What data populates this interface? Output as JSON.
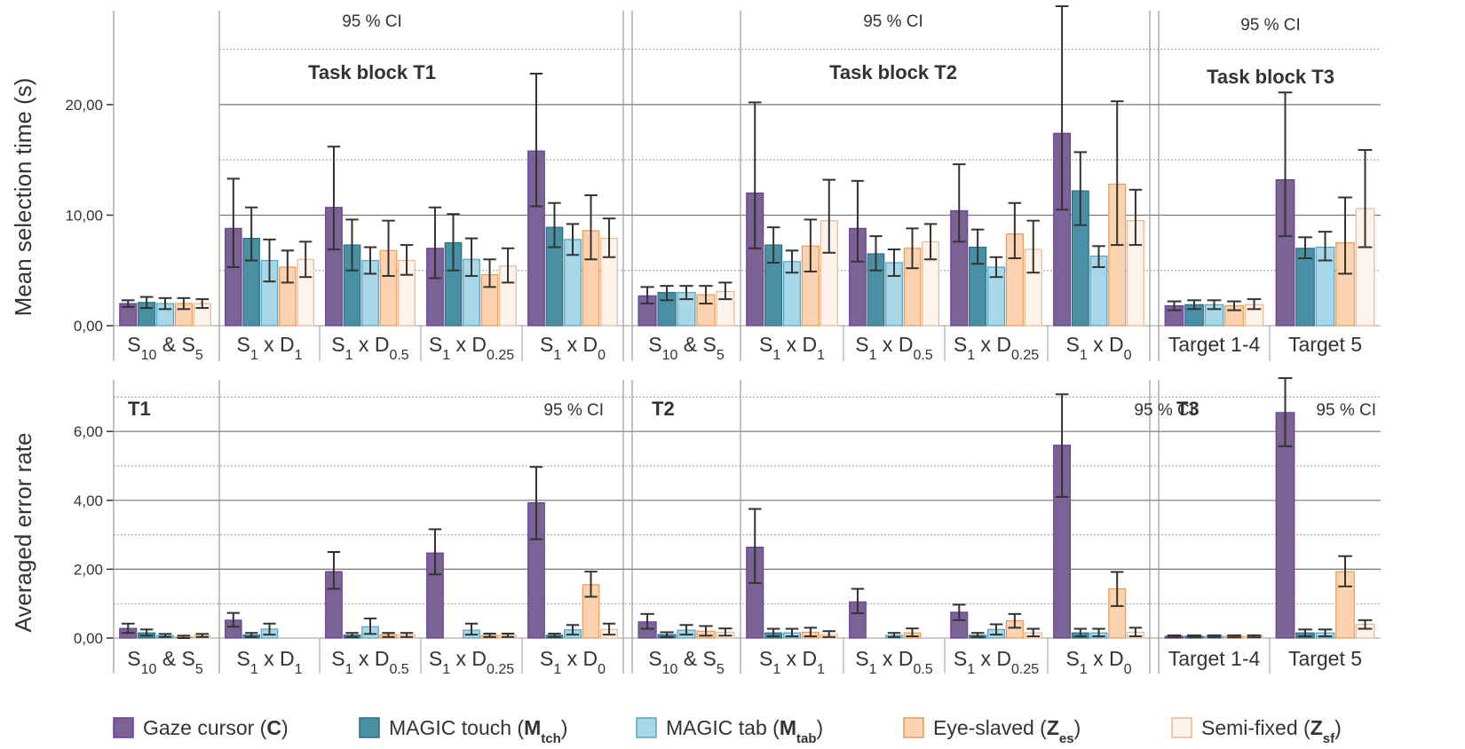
{
  "chart_data": [
    {
      "type": "bar",
      "panel": "selection-time",
      "ylabel": "Mean selection time (s)",
      "yticks": [
        "0,00",
        "10,00",
        "20,00"
      ],
      "ylim": [
        0,
        28.5
      ],
      "gridlines_solid": [
        10,
        20
      ],
      "gridlines_dashed": [
        5,
        15,
        25
      ],
      "series_names": [
        "Gaze cursor (C)",
        "MAGIC touch (Mtch)",
        "MAGIC tab (Mtab)",
        "Eye-slaved (Zes)",
        "Semi-fixed (Zsf)"
      ],
      "blocks": [
        {
          "title": "Task block T1",
          "ci_label": "95 % CI",
          "groups": [
            {
              "label": "S10 & S5",
              "values": [
                2.0,
                2.1,
                2.0,
                2.0,
                2.0
              ],
              "err_low": [
                1.7,
                1.6,
                1.5,
                1.5,
                1.6
              ],
              "err_high": [
                2.3,
                2.6,
                2.5,
                2.5,
                2.4
              ]
            },
            {
              "label": "S1 x D1",
              "values": [
                8.8,
                7.9,
                5.9,
                5.3,
                6.0
              ],
              "err_low": [
                5.3,
                5.9,
                4.0,
                3.9,
                4.4
              ],
              "err_high": [
                13.3,
                10.7,
                7.8,
                6.8,
                7.6
              ]
            },
            {
              "label": "S1 x D0.5",
              "values": [
                10.7,
                7.3,
                5.9,
                6.8,
                5.9
              ],
              "err_low": [
                6.9,
                5.0,
                4.7,
                4.5,
                4.6
              ],
              "err_high": [
                16.2,
                9.6,
                7.1,
                9.5,
                7.3
              ]
            },
            {
              "label": "S1 x D0.25",
              "values": [
                7.0,
                7.5,
                6.0,
                4.6,
                5.4
              ],
              "err_low": [
                4.3,
                5.0,
                4.5,
                3.5,
                3.9
              ],
              "err_high": [
                10.7,
                10.1,
                7.9,
                6.0,
                7.0
              ]
            },
            {
              "label": "S1 x D0",
              "values": [
                15.8,
                8.9,
                7.8,
                8.6,
                7.9
              ],
              "err_low": [
                10.8,
                7.1,
                6.4,
                6.0,
                6.2
              ],
              "err_high": [
                22.8,
                11.1,
                9.2,
                11.8,
                9.7
              ]
            }
          ]
        },
        {
          "title": "Task block T2",
          "ci_label": "95 % CI",
          "groups": [
            {
              "label": "S10 & S5",
              "values": [
                2.7,
                3.0,
                3.0,
                2.8,
                3.1
              ],
              "err_low": [
                2.0,
                2.3,
                2.4,
                2.0,
                2.4
              ],
              "err_high": [
                3.5,
                3.6,
                3.6,
                3.6,
                3.9
              ]
            },
            {
              "label": "S1 x D1",
              "values": [
                12.0,
                7.3,
                5.8,
                7.2,
                9.5
              ],
              "err_low": [
                7.0,
                5.7,
                4.8,
                4.9,
                6.6
              ],
              "err_high": [
                20.2,
                8.9,
                6.8,
                9.6,
                13.2
              ]
            },
            {
              "label": "S1 x D0.5",
              "values": [
                8.8,
                6.5,
                5.7,
                7.0,
                7.6
              ],
              "err_low": [
                5.8,
                5.0,
                4.5,
                5.2,
                6.0
              ],
              "err_high": [
                13.1,
                8.1,
                6.9,
                8.8,
                9.2
              ]
            },
            {
              "label": "S1 x D0.25",
              "values": [
                10.4,
                7.1,
                5.3,
                8.3,
                6.9
              ],
              "err_low": [
                7.6,
                5.6,
                4.4,
                6.1,
                4.8
              ],
              "err_high": [
                14.6,
                8.7,
                6.2,
                11.1,
                9.5
              ]
            },
            {
              "label": "S1 x D0",
              "values": [
                17.4,
                12.2,
                6.3,
                12.8,
                9.5
              ],
              "err_low": [
                10.5,
                9.1,
                5.3,
                7.3,
                7.3
              ],
              "err_high": [
                28.9,
                15.7,
                7.2,
                20.3,
                12.3
              ]
            }
          ]
        },
        {
          "title": "Task block T3",
          "ci_label": "95 % CI",
          "groups": [
            {
              "label": "Target 1-4",
              "values": [
                1.8,
                1.9,
                1.9,
                1.8,
                1.9
              ],
              "err_low": [
                1.4,
                1.5,
                1.5,
                1.4,
                1.5
              ],
              "err_high": [
                2.2,
                2.3,
                2.3,
                2.2,
                2.4
              ]
            },
            {
              "label": "Target 5",
              "values": [
                13.2,
                7.0,
                7.1,
                7.5,
                10.6
              ],
              "err_low": [
                8.1,
                6.1,
                5.9,
                4.7,
                7.1
              ],
              "err_high": [
                21.1,
                8.0,
                8.5,
                11.6,
                15.9
              ]
            }
          ]
        }
      ]
    },
    {
      "type": "bar",
      "panel": "error-rate",
      "ylabel": "Averaged error rate",
      "yticks": [
        "0,00",
        "2,00",
        "4,00",
        "6,00"
      ],
      "ylim": [
        0,
        7.5
      ],
      "gridlines_solid": [
        2,
        4,
        6
      ],
      "gridlines_dashed": [
        1,
        3,
        5,
        7
      ],
      "series_names": [
        "Gaze cursor (C)",
        "MAGIC touch (Mtch)",
        "MAGIC tab (Mtab)",
        "Eye-slaved (Zes)",
        "Semi-fixed (Zsf)"
      ],
      "blocks": [
        {
          "tag": "T1",
          "ci_label": "95 % CI",
          "groups": [
            {
              "label": "S10 & S5",
              "values": [
                0.28,
                0.15,
                0.07,
                0.03,
                0.07
              ],
              "err_low": [
                0.15,
                0.07,
                0.03,
                0.0,
                0.03
              ],
              "err_high": [
                0.42,
                0.25,
                0.12,
                0.07,
                0.12
              ]
            },
            {
              "label": "S1 x D1",
              "values": [
                0.52,
                0.09,
                0.26,
                0.0,
                0.0
              ],
              "err_low": [
                0.33,
                0.03,
                0.1,
                0.0,
                0.0
              ],
              "err_high": [
                0.73,
                0.15,
                0.42,
                0.0,
                0.0
              ]
            },
            {
              "label": "S1 x D0.5",
              "values": [
                1.93,
                0.09,
                0.33,
                0.1,
                0.09
              ],
              "err_low": [
                1.43,
                0.03,
                0.12,
                0.03,
                0.03
              ],
              "err_high": [
                2.5,
                0.15,
                0.57,
                0.15,
                0.15
              ]
            },
            {
              "label": "S1 x D0.25",
              "values": [
                2.47,
                0.0,
                0.23,
                0.08,
                0.08
              ],
              "err_low": [
                1.85,
                0.0,
                0.1,
                0.03,
                0.03
              ],
              "err_high": [
                3.16,
                0.0,
                0.42,
                0.13,
                0.13
              ]
            },
            {
              "label": "S1 x D0",
              "values": [
                3.93,
                0.08,
                0.24,
                1.55,
                0.25
              ],
              "err_low": [
                2.87,
                0.03,
                0.1,
                1.2,
                0.1
              ],
              "err_high": [
                4.97,
                0.13,
                0.38,
                1.93,
                0.42
              ]
            }
          ]
        },
        {
          "tag": "T2",
          "ci_label": "95 % CI",
          "groups": [
            {
              "label": "S10 & S5",
              "values": [
                0.47,
                0.1,
                0.23,
                0.2,
                0.17
              ],
              "err_low": [
                0.27,
                0.03,
                0.1,
                0.07,
                0.07
              ],
              "err_high": [
                0.7,
                0.17,
                0.38,
                0.35,
                0.28
              ]
            },
            {
              "label": "S1 x D1",
              "values": [
                2.64,
                0.15,
                0.15,
                0.17,
                0.1
              ],
              "err_low": [
                1.6,
                0.05,
                0.05,
                0.05,
                0.03
              ],
              "err_high": [
                3.75,
                0.27,
                0.27,
                0.3,
                0.2
              ]
            },
            {
              "label": "S1 x D0.5",
              "values": [
                1.05,
                0.0,
                0.08,
                0.15,
                0.0
              ],
              "err_low": [
                0.72,
                0.0,
                0.03,
                0.05,
                0.0
              ],
              "err_high": [
                1.43,
                0.0,
                0.15,
                0.28,
                0.0
              ]
            },
            {
              "label": "S1 x D0.25",
              "values": [
                0.75,
                0.08,
                0.25,
                0.5,
                0.15
              ],
              "err_low": [
                0.52,
                0.03,
                0.1,
                0.3,
                0.05
              ],
              "err_high": [
                0.97,
                0.15,
                0.4,
                0.7,
                0.27
              ]
            },
            {
              "label": "S1 x D0",
              "values": [
                5.6,
                0.15,
                0.15,
                1.43,
                0.17
              ],
              "err_low": [
                4.1,
                0.05,
                0.05,
                0.93,
                0.05
              ],
              "err_high": [
                7.08,
                0.27,
                0.27,
                1.92,
                0.3
              ]
            }
          ]
        },
        {
          "tag": "T3",
          "ci_label": "95 % CI",
          "groups": [
            {
              "label": "Target 1-4",
              "values": [
                0.05,
                0.05,
                0.05,
                0.05,
                0.05
              ],
              "err_low": [
                0.02,
                0.02,
                0.02,
                0.02,
                0.02
              ],
              "err_high": [
                0.08,
                0.08,
                0.08,
                0.08,
                0.08
              ]
            },
            {
              "label": "Target 5",
              "values": [
                6.55,
                0.15,
                0.15,
                1.93,
                0.4
              ],
              "err_low": [
                5.57,
                0.05,
                0.05,
                1.5,
                0.27
              ],
              "err_high": [
                7.55,
                0.25,
                0.25,
                2.38,
                0.52
              ]
            }
          ]
        }
      ]
    }
  ],
  "legend": [
    {
      "text": "Gaze cursor (",
      "bold": "C",
      "sub": "",
      "tail": ")",
      "fill": "#7b6395",
      "stroke": "#6a3d9a"
    },
    {
      "text": "MAGIC touch (",
      "bold": "M",
      "sub": "tch",
      "tail": ")",
      "fill": "#4a90a4",
      "stroke": "#2e6e82"
    },
    {
      "text": "MAGIC tab (",
      "bold": "M",
      "sub": "tab",
      "tail": ")",
      "fill": "#a8d8e8",
      "stroke": "#5aa0c0"
    },
    {
      "text": "Eye-slaved (",
      "bold": "Z",
      "sub": "es",
      "tail": ")",
      "fill": "#fbd3b0",
      "stroke": "#e89a58"
    },
    {
      "text": "Semi-fixed (",
      "bold": "Z",
      "sub": "sf",
      "tail": ")",
      "fill": "#fdf3ea",
      "stroke": "#e8b892"
    }
  ]
}
